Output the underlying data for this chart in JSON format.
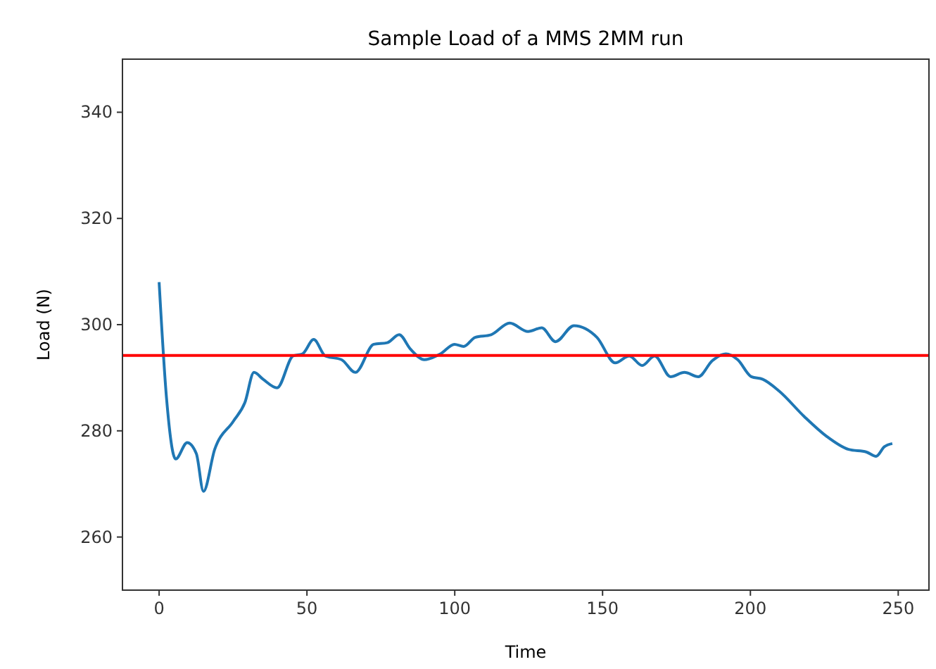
{
  "chart_data": {
    "type": "line",
    "title": "Sample Load of a MMS 2MM run",
    "xlabel": "Time",
    "ylabel": "Load (N)",
    "xlim": [
      -12.4,
      260.4
    ],
    "ylim": [
      250,
      350
    ],
    "xticks": [
      0,
      50,
      100,
      150,
      200,
      250
    ],
    "yticks": [
      260,
      280,
      300,
      320,
      340
    ],
    "series": [
      {
        "color": "#1f77b4",
        "x": [
          0,
          2.5,
          5.6,
          9.5,
          12.6,
          15,
          18.8,
          25.1,
          29,
          32.1,
          35.2,
          39.9,
          45.3,
          48.5,
          52.3,
          56.2,
          61.7,
          66.4,
          72.6,
          77.2,
          81.2,
          85,
          89.7,
          95.2,
          99.9,
          103,
          106.9,
          112.3,
          118.6,
          124.8,
          129.4,
          134.1,
          140.3,
          148.1,
          154.3,
          159,
          163.4,
          167.6,
          173,
          177.7,
          182.4,
          187.1,
          191.7,
          195.7,
          200.3,
          204.2,
          209.7,
          218.2,
          225.7,
          233.2,
          239.3,
          242.5,
          245.3,
          248
        ],
        "values": [
          308,
          286.2,
          274.7,
          277.8,
          275.7,
          268.6,
          276.5,
          281.8,
          285.3,
          291,
          289.7,
          288.1,
          294.1,
          294.5,
          297.2,
          294.1,
          293.4,
          291,
          296.3,
          296.6,
          298.1,
          295.4,
          293.4,
          294.5,
          296.3,
          295.9,
          297.6,
          298.1,
          300.3,
          298.7,
          299.4,
          296.8,
          299.8,
          297.6,
          292.8,
          294.1,
          292.3,
          294.1,
          290.2,
          291,
          290.2,
          293.2,
          294.5,
          293.4,
          290.2,
          289.7,
          287.5,
          282.7,
          279,
          276.5,
          276,
          275.2,
          277,
          277.6
        ]
      }
    ],
    "ref_lines": [
      {
        "axis": "y",
        "value": 294.2,
        "color": "#ff0000"
      }
    ],
    "grid": false
  }
}
